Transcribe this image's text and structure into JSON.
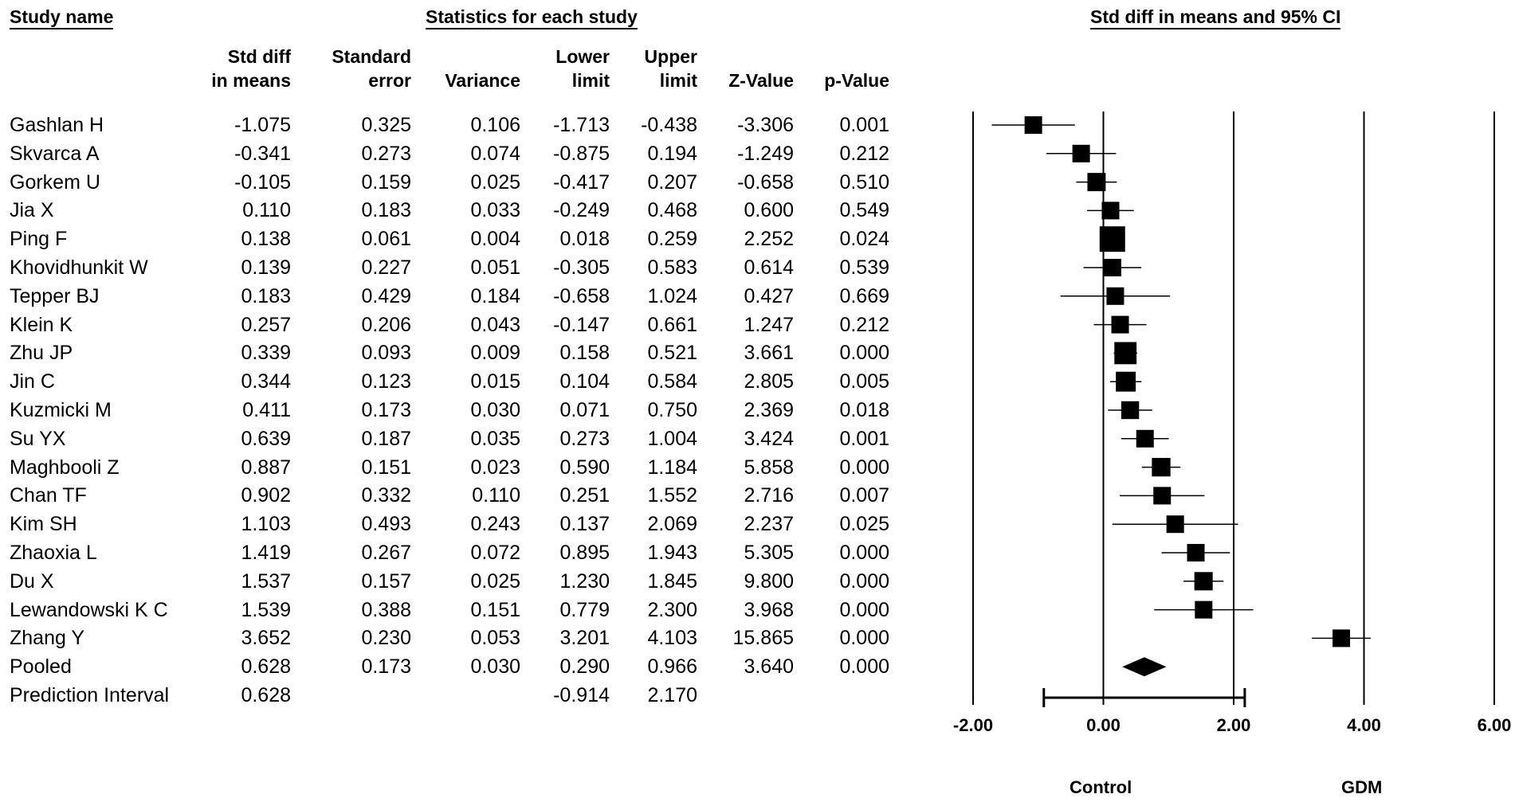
{
  "headers": {
    "study_name": "Study name",
    "statistics": "Statistics for each study",
    "plot_title": "Std diff in means and 95% CI"
  },
  "columns": [
    {
      "key": "smd",
      "line1": "Std diff",
      "line2": "in means"
    },
    {
      "key": "se",
      "line1": "Standard",
      "line2": "error"
    },
    {
      "key": "var",
      "line1": "",
      "line2": "Variance"
    },
    {
      "key": "ll",
      "line1": "Lower",
      "line2": "limit"
    },
    {
      "key": "ul",
      "line1": "Upper",
      "line2": "limit"
    },
    {
      "key": "z",
      "line1": "",
      "line2": "Z-Value"
    },
    {
      "key": "p",
      "line1": "",
      "line2": "p-Value"
    }
  ],
  "rows": [
    {
      "name": "Gashlan H",
      "smd": "-1.075",
      "se": "0.325",
      "var": "0.106",
      "ll": "-1.713",
      "ul": "-0.438",
      "z": "-3.306",
      "p": "0.001"
    },
    {
      "name": "Skvarca A",
      "smd": "-0.341",
      "se": "0.273",
      "var": "0.074",
      "ll": "-0.875",
      "ul": "0.194",
      "z": "-1.249",
      "p": "0.212"
    },
    {
      "name": "Gorkem U",
      "smd": "-0.105",
      "se": "0.159",
      "var": "0.025",
      "ll": "-0.417",
      "ul": "0.207",
      "z": "-0.658",
      "p": "0.510"
    },
    {
      "name": "Jia X",
      "smd": "0.110",
      "se": "0.183",
      "var": "0.033",
      "ll": "-0.249",
      "ul": "0.468",
      "z": "0.600",
      "p": "0.549"
    },
    {
      "name": "Ping F",
      "smd": "0.138",
      "se": "0.061",
      "var": "0.004",
      "ll": "0.018",
      "ul": "0.259",
      "z": "2.252",
      "p": "0.024"
    },
    {
      "name": "Khovidhunkit W",
      "smd": "0.139",
      "se": "0.227",
      "var": "0.051",
      "ll": "-0.305",
      "ul": "0.583",
      "z": "0.614",
      "p": "0.539"
    },
    {
      "name": "Tepper BJ",
      "smd": "0.183",
      "se": "0.429",
      "var": "0.184",
      "ll": "-0.658",
      "ul": "1.024",
      "z": "0.427",
      "p": "0.669"
    },
    {
      "name": "Klein K",
      "smd": "0.257",
      "se": "0.206",
      "var": "0.043",
      "ll": "-0.147",
      "ul": "0.661",
      "z": "1.247",
      "p": "0.212"
    },
    {
      "name": "Zhu JP",
      "smd": "0.339",
      "se": "0.093",
      "var": "0.009",
      "ll": "0.158",
      "ul": "0.521",
      "z": "3.661",
      "p": "0.000"
    },
    {
      "name": "Jin C",
      "smd": "0.344",
      "se": "0.123",
      "var": "0.015",
      "ll": "0.104",
      "ul": "0.584",
      "z": "2.805",
      "p": "0.005"
    },
    {
      "name": "Kuzmicki M",
      "smd": "0.411",
      "se": "0.173",
      "var": "0.030",
      "ll": "0.071",
      "ul": "0.750",
      "z": "2.369",
      "p": "0.018"
    },
    {
      "name": "Su YX",
      "smd": "0.639",
      "se": "0.187",
      "var": "0.035",
      "ll": "0.273",
      "ul": "1.004",
      "z": "3.424",
      "p": "0.001"
    },
    {
      "name": "Maghbooli Z",
      "smd": "0.887",
      "se": "0.151",
      "var": "0.023",
      "ll": "0.590",
      "ul": "1.184",
      "z": "5.858",
      "p": "0.000"
    },
    {
      "name": "Chan TF",
      "smd": "0.902",
      "se": "0.332",
      "var": "0.110",
      "ll": "0.251",
      "ul": "1.552",
      "z": "2.716",
      "p": "0.007"
    },
    {
      "name": "Kim SH",
      "smd": "1.103",
      "se": "0.493",
      "var": "0.243",
      "ll": "0.137",
      "ul": "2.069",
      "z": "2.237",
      "p": "0.025"
    },
    {
      "name": "Zhaoxia L",
      "smd": "1.419",
      "se": "0.267",
      "var": "0.072",
      "ll": "0.895",
      "ul": "1.943",
      "z": "5.305",
      "p": "0.000"
    },
    {
      "name": "Du X",
      "smd": "1.537",
      "se": "0.157",
      "var": "0.025",
      "ll": "1.230",
      "ul": "1.845",
      "z": "9.800",
      "p": "0.000"
    },
    {
      "name": "Lewandowski K C",
      "smd": "1.539",
      "se": "0.388",
      "var": "0.151",
      "ll": "0.779",
      "ul": "2.300",
      "z": "3.968",
      "p": "0.000"
    },
    {
      "name": "Zhang Y",
      "smd": "3.652",
      "se": "0.230",
      "var": "0.053",
      "ll": "3.201",
      "ul": "4.103",
      "z": "15.865",
      "p": "0.000"
    },
    {
      "name": "Pooled",
      "smd": "0.628",
      "se": "0.173",
      "var": "0.030",
      "ll": "0.290",
      "ul": "0.966",
      "z": "3.640",
      "p": "0.000"
    },
    {
      "name": "Prediction Interval",
      "smd": "0.628",
      "se": "",
      "var": "",
      "ll": "-0.914",
      "ul": "2.170",
      "z": "",
      "p": ""
    }
  ],
  "chart_data": {
    "type": "forest",
    "title": "Std diff in means and 95% CI",
    "xlim": [
      -2,
      6
    ],
    "ticks": [
      "-2.00",
      "0.00",
      "2.00",
      "4.00",
      "6.00"
    ],
    "tick_values": [
      -2,
      0,
      2,
      4,
      6
    ],
    "reference_lines": [
      0,
      2,
      4,
      6
    ],
    "left_label": "Control",
    "right_label": "GDM",
    "studies": [
      {
        "name": "Gashlan H",
        "est": -1.075,
        "lo": -1.713,
        "hi": -0.438,
        "weight": 0.325
      },
      {
        "name": "Skvarca A",
        "est": -0.341,
        "lo": -0.875,
        "hi": 0.194,
        "weight": 0.273
      },
      {
        "name": "Gorkem U",
        "est": -0.105,
        "lo": -0.417,
        "hi": 0.207,
        "weight": 0.159
      },
      {
        "name": "Jia X",
        "est": 0.11,
        "lo": -0.249,
        "hi": 0.468,
        "weight": 0.183
      },
      {
        "name": "Ping F",
        "est": 0.138,
        "lo": 0.018,
        "hi": 0.259,
        "weight": 0.061
      },
      {
        "name": "Khovidhunkit W",
        "est": 0.139,
        "lo": -0.305,
        "hi": 0.583,
        "weight": 0.227
      },
      {
        "name": "Tepper BJ",
        "est": 0.183,
        "lo": -0.658,
        "hi": 1.024,
        "weight": 0.429
      },
      {
        "name": "Klein K",
        "est": 0.257,
        "lo": -0.147,
        "hi": 0.661,
        "weight": 0.206
      },
      {
        "name": "Zhu JP",
        "est": 0.339,
        "lo": 0.158,
        "hi": 0.521,
        "weight": 0.093
      },
      {
        "name": "Jin C",
        "est": 0.344,
        "lo": 0.104,
        "hi": 0.584,
        "weight": 0.123
      },
      {
        "name": "Kuzmicki M",
        "est": 0.411,
        "lo": 0.071,
        "hi": 0.75,
        "weight": 0.173
      },
      {
        "name": "Su YX",
        "est": 0.639,
        "lo": 0.273,
        "hi": 1.004,
        "weight": 0.187
      },
      {
        "name": "Maghbooli Z",
        "est": 0.887,
        "lo": 0.59,
        "hi": 1.184,
        "weight": 0.151
      },
      {
        "name": "Chan TF",
        "est": 0.902,
        "lo": 0.251,
        "hi": 1.552,
        "weight": 0.332
      },
      {
        "name": "Kim SH",
        "est": 1.103,
        "lo": 0.137,
        "hi": 2.069,
        "weight": 0.493
      },
      {
        "name": "Zhaoxia L",
        "est": 1.419,
        "lo": 0.895,
        "hi": 1.943,
        "weight": 0.267
      },
      {
        "name": "Du X",
        "est": 1.537,
        "lo": 1.23,
        "hi": 1.845,
        "weight": 0.157
      },
      {
        "name": "Lewandowski K C",
        "est": 1.539,
        "lo": 0.779,
        "hi": 2.3,
        "weight": 0.388
      },
      {
        "name": "Zhang Y",
        "est": 3.652,
        "lo": 3.201,
        "hi": 4.103,
        "weight": 0.23
      }
    ],
    "pooled": {
      "est": 0.628,
      "lo": 0.29,
      "hi": 0.966
    },
    "prediction_interval": {
      "est": 0.628,
      "lo": -0.914,
      "hi": 2.17
    }
  }
}
